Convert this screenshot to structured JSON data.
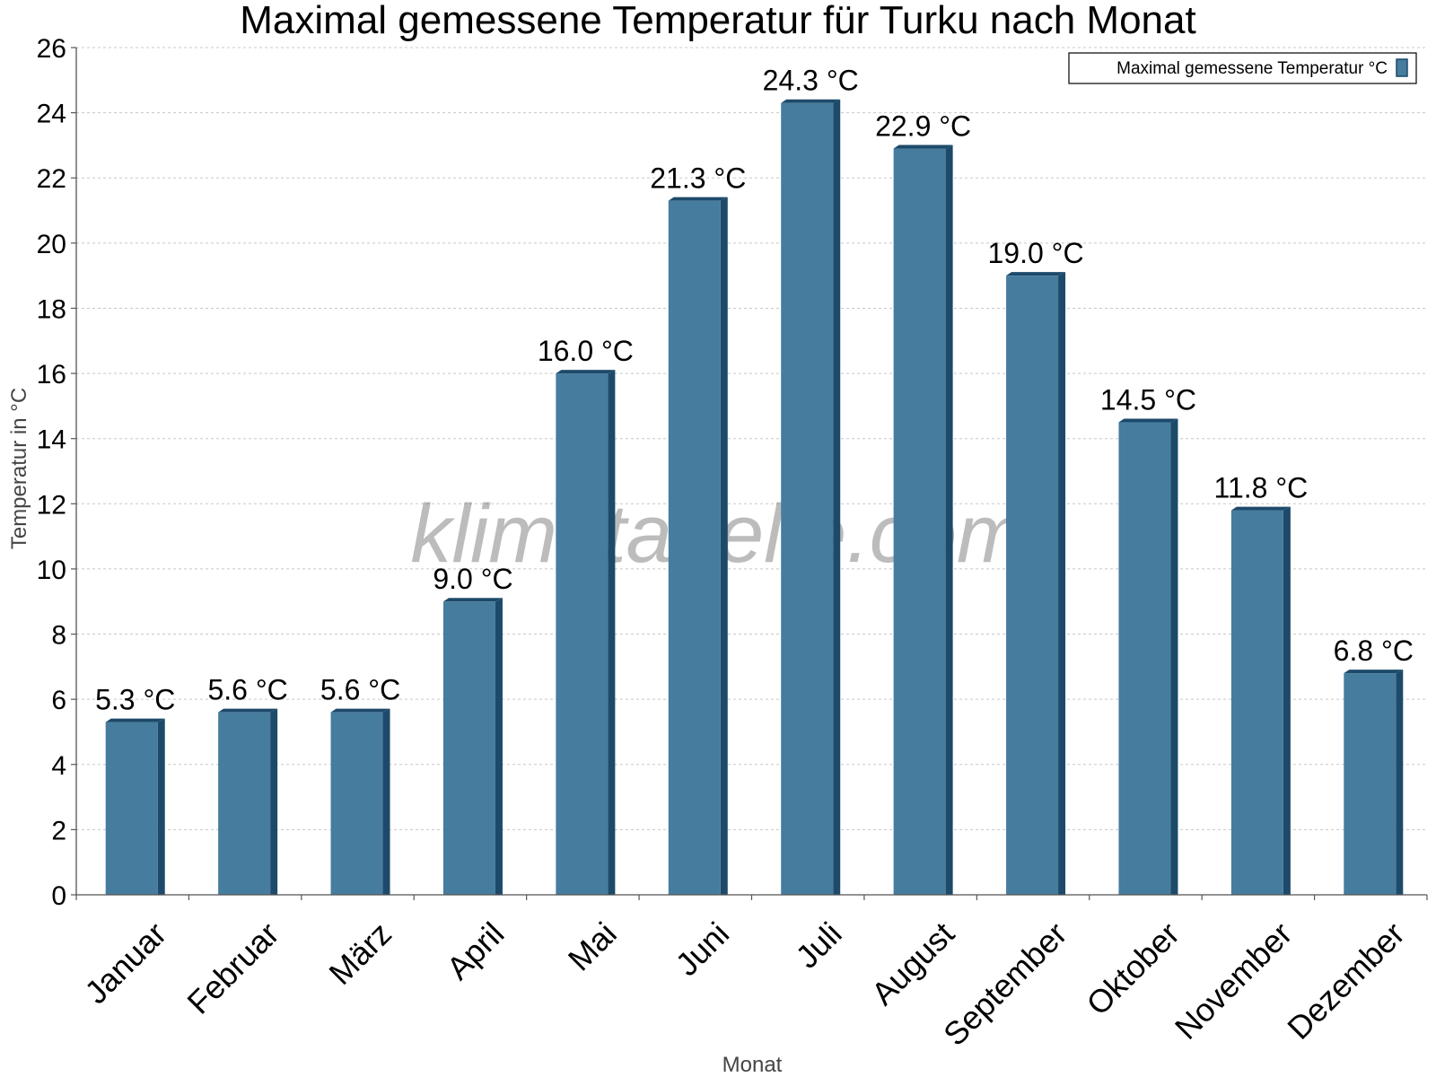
{
  "chart_data": {
    "type": "bar",
    "title": "Maximal gemessene Temperatur für Turku nach Monat",
    "xlabel": "Monat",
    "ylabel": "Temperatur in °C",
    "categories": [
      "Januar",
      "Februar",
      "März",
      "April",
      "Mai",
      "Juni",
      "Juli",
      "August",
      "September",
      "Oktober",
      "November",
      "Dezember"
    ],
    "series": [
      {
        "name": "Maximal gemessene Temperatur °C",
        "values": [
          5.3,
          5.6,
          5.6,
          9.0,
          16.0,
          21.3,
          24.3,
          22.9,
          19.0,
          14.5,
          11.8,
          6.8
        ],
        "labels": [
          "5.3 °C",
          "5.6 °C",
          "5.6 °C",
          "9.0 °C",
          "16.0 °C",
          "21.3 °C",
          "24.3 °C",
          "22.9 °C",
          "19.0 °C",
          "14.5 °C",
          "11.8 °C",
          "6.8 °C"
        ]
      }
    ],
    "ylim": [
      0,
      26
    ],
    "yticks": [
      0,
      2,
      4,
      6,
      8,
      10,
      12,
      14,
      16,
      18,
      20,
      22,
      24,
      26
    ],
    "grid": true,
    "legend_position": "top-right",
    "colors": {
      "bar": "#467c9e",
      "bar_side": "#1d4a6a",
      "bar_top": "#1d4a6a"
    }
  },
  "watermark": "klimatabelle.com"
}
